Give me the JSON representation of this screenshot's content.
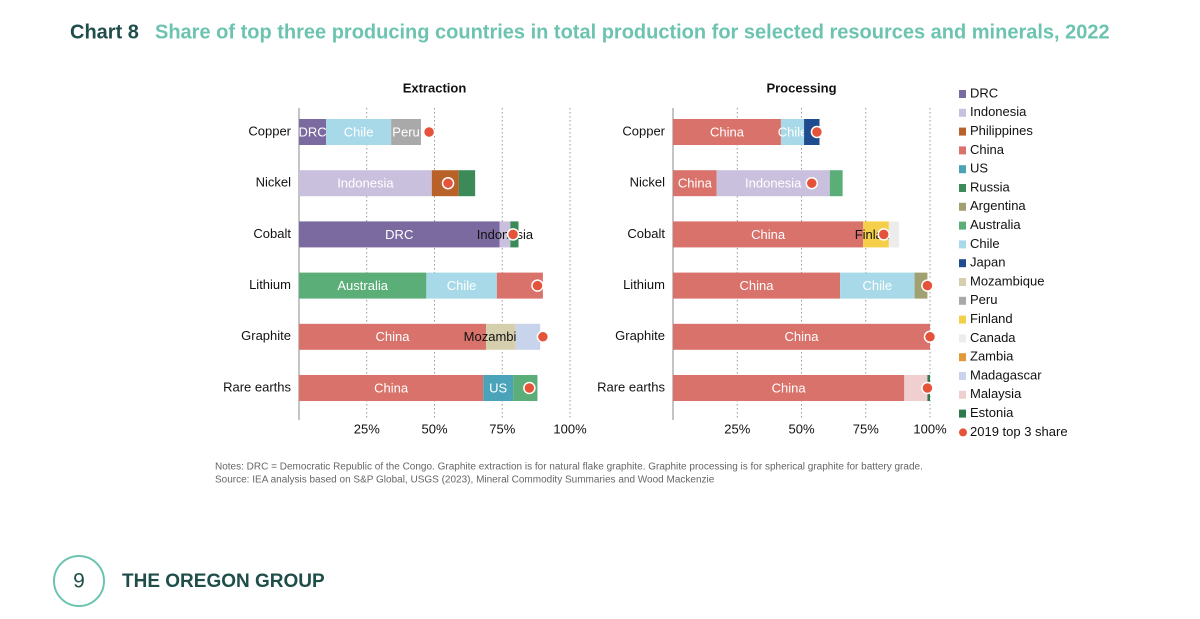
{
  "header": {
    "label": "Chart 8",
    "title": "Share of top three producing countries in total production for selected resources and minerals, 2022"
  },
  "chart_data": [
    {
      "type": "bar",
      "orientation": "horizontal",
      "stacked": true,
      "title": "Extraction",
      "categories": [
        "Copper",
        "Nickel",
        "Cobalt",
        "Lithium",
        "Graphite",
        "Rare earths"
      ],
      "segments": [
        [
          {
            "label": "DRC",
            "value": 10,
            "color": "#7b6aa0",
            "text_color": "#ffffff"
          },
          {
            "label": "Chile",
            "value": 24,
            "color": "#a8d9e8",
            "text_color": "#ffffff"
          },
          {
            "label": "Peru",
            "value": 11,
            "color": "#a9a9a9",
            "text_color": "#ffffff"
          }
        ],
        [
          {
            "label": "Indonesia",
            "value": 49,
            "color": "#c9c0dd",
            "text_color": "#ffffff"
          },
          {
            "value": 10,
            "color": "#b8622a"
          },
          {
            "value": 6,
            "color": "#3b8a57"
          }
        ],
        [
          {
            "label": "DRC",
            "value": 74,
            "color": "#7b6aa0",
            "text_color": "#ffffff"
          },
          {
            "label": "Indonesia",
            "value": 4,
            "color": "#c9c0dd",
            "text_color": "#111111"
          },
          {
            "value": 3,
            "color": "#3b8a57"
          }
        ],
        [
          {
            "label": "Australia",
            "value": 47,
            "color": "#5cae78",
            "text_color": "#ffffff"
          },
          {
            "label": "Chile",
            "value": 26,
            "color": "#a8d9e8",
            "text_color": "#ffffff"
          },
          {
            "value": 17,
            "color": "#d9726b"
          }
        ],
        [
          {
            "label": "China",
            "value": 69,
            "color": "#d9726b",
            "text_color": "#ffffff"
          },
          {
            "label": "Mozambique",
            "value": 11,
            "color": "#d6cfae",
            "text_color": "#111111"
          },
          {
            "value": 9,
            "color": "#c8d4ec"
          }
        ],
        [
          {
            "label": "China",
            "value": 68,
            "color": "#d9726b",
            "text_color": "#ffffff"
          },
          {
            "label": "US",
            "value": 11,
            "color": "#4aa3b8",
            "text_color": "#ffffff"
          },
          {
            "value": 9,
            "color": "#5cae78"
          }
        ]
      ],
      "top3_2019": [
        48,
        55,
        79,
        88,
        90,
        85
      ],
      "xlim": [
        0,
        100
      ],
      "xticks": [
        {
          "value": 25,
          "label": "25%"
        },
        {
          "value": 50,
          "label": "50%"
        },
        {
          "value": 75,
          "label": "75%"
        },
        {
          "value": 100,
          "label": "100%"
        }
      ],
      "grid": true
    },
    {
      "type": "bar",
      "orientation": "horizontal",
      "stacked": true,
      "title": "Processing",
      "categories": [
        "Copper",
        "Nickel",
        "Cobalt",
        "Lithium",
        "Graphite",
        "Rare earths"
      ],
      "segments": [
        [
          {
            "label": "China",
            "value": 42,
            "color": "#d9726b",
            "text_color": "#ffffff"
          },
          {
            "label": "Chile",
            "value": 9,
            "color": "#a8d9e8",
            "text_color": "#ffffff"
          },
          {
            "value": 6,
            "color": "#1f4b8f"
          }
        ],
        [
          {
            "label": "China",
            "value": 17,
            "color": "#d9726b",
            "text_color": "#ffffff"
          },
          {
            "label": "Indonesia",
            "value": 44,
            "color": "#c9c0dd",
            "text_color": "#ffffff"
          },
          {
            "value": 5,
            "color": "#5cae78"
          }
        ],
        [
          {
            "label": "China",
            "value": 74,
            "color": "#d9726b",
            "text_color": "#ffffff"
          },
          {
            "label": "Finland",
            "value": 10,
            "color": "#f5cf4a",
            "text_color": "#111111"
          },
          {
            "value": 4,
            "color": "#ececec"
          }
        ],
        [
          {
            "label": "China",
            "value": 65,
            "color": "#d9726b",
            "text_color": "#ffffff"
          },
          {
            "label": "Chile",
            "value": 29,
            "color": "#a8d9e8",
            "text_color": "#ffffff"
          },
          {
            "value": 5,
            "color": "#a1a070"
          }
        ],
        [
          {
            "label": "China",
            "value": 100,
            "color": "#d9726b",
            "text_color": "#ffffff"
          }
        ],
        [
          {
            "label": "China",
            "value": 90,
            "color": "#d9726b",
            "text_color": "#ffffff"
          },
          {
            "value": 9,
            "color": "#efcfcf"
          },
          {
            "value": 1,
            "color": "#2f7a4a"
          }
        ]
      ],
      "top3_2019": [
        56,
        54,
        82,
        99,
        100,
        99
      ],
      "xlim": [
        0,
        100
      ],
      "xticks": [
        {
          "value": 25,
          "label": "25%"
        },
        {
          "value": 50,
          "label": "50%"
        },
        {
          "value": 75,
          "label": "75%"
        },
        {
          "value": 100,
          "label": "100%"
        }
      ],
      "grid": true
    }
  ],
  "marker_color": "#e5533a",
  "legend": [
    {
      "name": "DRC",
      "color": "#7b6aa0"
    },
    {
      "name": "Indonesia",
      "color": "#c9c0dd"
    },
    {
      "name": "Philippines",
      "color": "#b8622a"
    },
    {
      "name": "China",
      "color": "#d9726b"
    },
    {
      "name": "US",
      "color": "#4aa3b8"
    },
    {
      "name": "Russia",
      "color": "#3b8a57"
    },
    {
      "name": "Argentina",
      "color": "#a1a070"
    },
    {
      "name": "Australia",
      "color": "#5cae78"
    },
    {
      "name": "Chile",
      "color": "#a8d9e8"
    },
    {
      "name": "Japan",
      "color": "#1f4b8f"
    },
    {
      "name": "Mozambique",
      "color": "#d6cfae"
    },
    {
      "name": "Peru",
      "color": "#a9a9a9"
    },
    {
      "name": "Finland",
      "color": "#f5cf4a"
    },
    {
      "name": "Canada",
      "color": "#ececec"
    },
    {
      "name": "Zambia",
      "color": "#e09a3a"
    },
    {
      "name": "Madagascar",
      "color": "#c8d4ec"
    },
    {
      "name": "Malaysia",
      "color": "#efcfcf"
    },
    {
      "name": "Estonia",
      "color": "#2f7a4a"
    },
    {
      "name": "2019 top 3 share",
      "color": "#e5533a",
      "marker": "dot"
    }
  ],
  "notes": [
    "Notes: DRC = Democratic Republic of the Congo. Graphite extraction is for natural flake graphite. Graphite processing is for spherical graphite for battery grade.",
    "Source: IEA analysis based on S&P Global, USGS (2023), Mineral Commodity Summaries and Wood Mackenzie"
  ],
  "footer": {
    "page": "9",
    "brand": "THE OREGON GROUP"
  }
}
